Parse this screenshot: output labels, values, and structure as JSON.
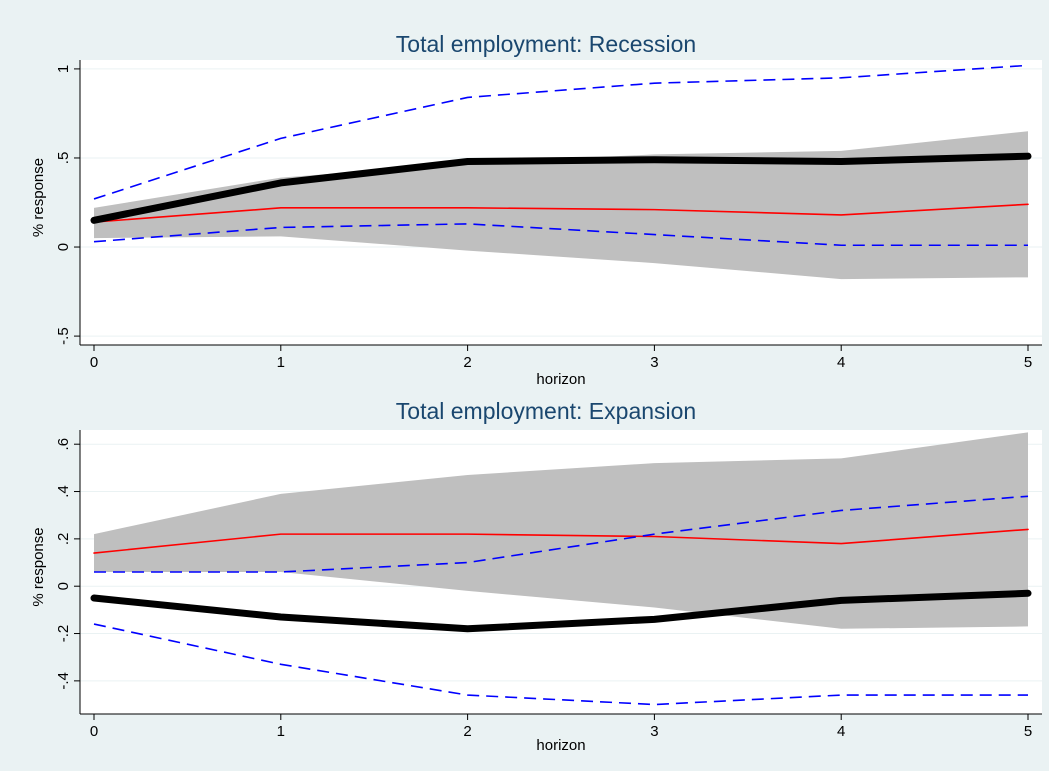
{
  "colors": {
    "background": "#eaf2f3",
    "plot_bg": "#ffffff",
    "band": "#bfbfbf",
    "linear_irf": "#ff0000",
    "state_irf": "#000000",
    "state_ci": "#0000ff",
    "title": "#1a476f"
  },
  "chart_data": [
    {
      "type": "line",
      "title": "Total employment: Recession",
      "xlabel": "horizon",
      "ylabel": "% response",
      "xlim": [
        0,
        5
      ],
      "ylim": [
        -0.55,
        1.05
      ],
      "xticks": [
        0,
        1,
        2,
        3,
        4,
        5
      ],
      "yticks": [
        -0.5,
        0,
        0.5,
        1
      ],
      "ytick_labels": [
        "-.5",
        "0",
        ".5",
        "1"
      ],
      "grid": true,
      "x": [
        0,
        1,
        2,
        3,
        4,
        5
      ],
      "band": {
        "lower": [
          0.05,
          0.06,
          -0.02,
          -0.09,
          -0.18,
          -0.17
        ],
        "upper": [
          0.22,
          0.39,
          0.47,
          0.52,
          0.54,
          0.65
        ]
      },
      "series": [
        {
          "role": "linear",
          "values": [
            0.14,
            0.22,
            0.22,
            0.21,
            0.18,
            0.24
          ]
        },
        {
          "role": "state",
          "values": [
            0.15,
            0.36,
            0.48,
            0.49,
            0.48,
            0.51
          ]
        },
        {
          "role": "state_upper",
          "values": [
            0.27,
            0.61,
            0.84,
            0.92,
            0.95,
            1.02
          ]
        },
        {
          "role": "state_lower",
          "values": [
            0.03,
            0.11,
            0.13,
            0.07,
            0.01,
            0.01
          ]
        }
      ]
    },
    {
      "type": "line",
      "title": "Total employment: Expansion",
      "xlabel": "horizon",
      "ylabel": "% response",
      "xlim": [
        0,
        5
      ],
      "ylim": [
        -0.54,
        0.66
      ],
      "xticks": [
        0,
        1,
        2,
        3,
        4,
        5
      ],
      "yticks": [
        -0.4,
        -0.2,
        0,
        0.2,
        0.4,
        0.6
      ],
      "ytick_labels": [
        "-.4",
        "-.2",
        "0",
        ".2",
        ".4",
        ".6"
      ],
      "grid": true,
      "x": [
        0,
        1,
        2,
        3,
        4,
        5
      ],
      "band": {
        "lower": [
          0.06,
          0.06,
          -0.02,
          -0.09,
          -0.18,
          -0.17
        ],
        "upper": [
          0.22,
          0.39,
          0.47,
          0.52,
          0.54,
          0.65
        ]
      },
      "series": [
        {
          "role": "linear",
          "values": [
            0.14,
            0.22,
            0.22,
            0.21,
            0.18,
            0.24
          ]
        },
        {
          "role": "state",
          "values": [
            -0.05,
            -0.13,
            -0.18,
            -0.14,
            -0.06,
            -0.03
          ]
        },
        {
          "role": "state_upper",
          "values": [
            0.06,
            0.06,
            0.1,
            0.22,
            0.32,
            0.38
          ]
        },
        {
          "role": "state_lower",
          "values": [
            -0.16,
            -0.33,
            -0.46,
            -0.5,
            -0.46,
            -0.46
          ]
        }
      ]
    }
  ]
}
